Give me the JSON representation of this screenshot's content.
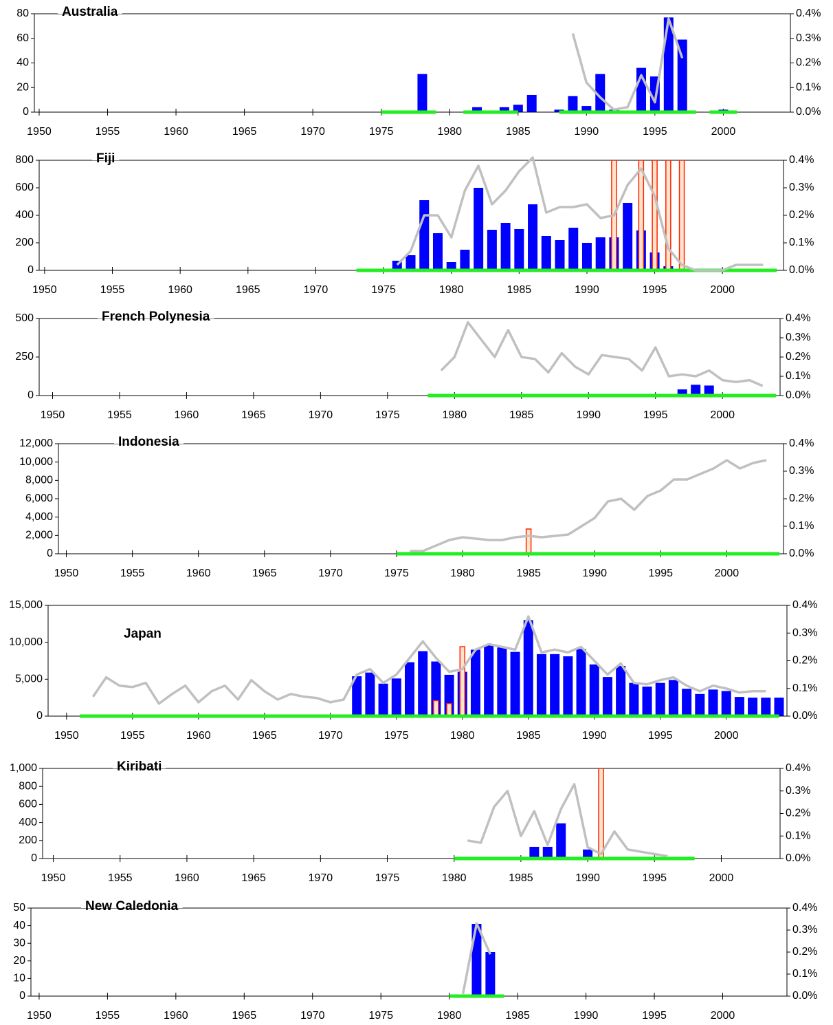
{
  "chart_data": [
    {
      "type": "combo",
      "title": "Australia",
      "xlim": [
        1949.65,
        2004.9
      ],
      "xticks": [
        1950,
        1955,
        1960,
        1965,
        1970,
        1975,
        1980,
        1985,
        1990,
        1995,
        2000
      ],
      "ylim": [
        0,
        80
      ],
      "yticks": [
        0,
        20,
        40,
        60,
        80
      ],
      "y2lim": [
        0,
        0.4
      ],
      "y2ticks": [
        {
          "value": 0,
          "label": "0.0%"
        },
        {
          "value": 0.1,
          "label": "0.1%"
        },
        {
          "value": 0.2,
          "label": "0.2%"
        },
        {
          "value": 0.3,
          "label": "0.3%"
        },
        {
          "value": 0.4,
          "label": "0.4%"
        }
      ],
      "series": [
        {
          "type": "bar",
          "color": "#0000ff",
          "x": [
            1978,
            1982,
            1984,
            1985,
            1986,
            1988,
            1989,
            1990,
            1991,
            1992,
            1994,
            1995,
            1996,
            1997,
            2000
          ],
          "values": [
            31,
            4,
            4,
            6,
            14,
            2,
            13,
            5,
            31,
            2,
            36,
            29,
            77,
            59,
            2
          ]
        },
        {
          "type": "line",
          "axis": "y2",
          "color": "#c0c0c0",
          "x": [
            1989,
            1990,
            1991,
            1992,
            1993,
            1994,
            1995,
            1996,
            1997
          ],
          "values": [
            0.32,
            0.12,
            0.06,
            0.01,
            0.02,
            0.15,
            0.04,
            0.38,
            0.22
          ]
        }
      ],
      "spans": {
        "color": "#22ee22",
        "start": [
          1975,
          1981,
          1988,
          1999
        ],
        "end": [
          1979,
          1985,
          1998,
          2001
        ]
      }
    },
    {
      "type": "combo",
      "title": "Fiji",
      "xlim": [
        1949.6,
        2004.5
      ],
      "xticks": [
        1950,
        1955,
        1960,
        1965,
        1970,
        1975,
        1980,
        1985,
        1990,
        1995,
        2000
      ],
      "ylim": [
        0,
        800
      ],
      "yticks": [
        0,
        200,
        400,
        600,
        800
      ],
      "y2lim": [
        0,
        0.4
      ],
      "y2ticks": [
        {
          "value": 0,
          "label": "0.0%"
        },
        {
          "value": 0.1,
          "label": "0.1%"
        },
        {
          "value": 0.2,
          "label": "0.2%"
        },
        {
          "value": 0.3,
          "label": "0.3%"
        },
        {
          "value": 0.4,
          "label": "0.4%"
        }
      ],
      "series": [
        {
          "type": "bar",
          "color": "#0000ff",
          "x": [
            1976,
            1977,
            1978,
            1979,
            1980,
            1981,
            1982,
            1983,
            1984,
            1985,
            1986,
            1987,
            1988,
            1989,
            1990,
            1991,
            1992,
            1993,
            1994,
            1995,
            1996
          ],
          "values": [
            70,
            110,
            510,
            270,
            60,
            150,
            600,
            295,
            345,
            300,
            480,
            250,
            220,
            310,
            200,
            240,
            240,
            490,
            290,
            130,
            30
          ]
        },
        {
          "type": "outline-bar",
          "color": "#ff2200",
          "x": [
            1992,
            1994,
            1995,
            1996,
            1997
          ],
          "values": [
            800,
            800,
            800,
            800,
            800
          ]
        },
        {
          "type": "line",
          "axis": "y2",
          "color": "#c0c0c0",
          "x": [
            1976,
            1977,
            1978,
            1979,
            1980,
            1981,
            1982,
            1983,
            1984,
            1985,
            1986,
            1987,
            1988,
            1989,
            1990,
            1991,
            1992,
            1993,
            1994,
            1995,
            1996,
            1997,
            1998,
            1999,
            2000,
            2001,
            2002,
            2003
          ],
          "values": [
            0.02,
            0.07,
            0.2,
            0.2,
            0.12,
            0.29,
            0.38,
            0.24,
            0.29,
            0.36,
            0.41,
            0.21,
            0.23,
            0.23,
            0.24,
            0.19,
            0.2,
            0.31,
            0.37,
            0.27,
            0.08,
            0.02,
            0,
            0,
            0,
            0.02,
            0.02,
            0.02
          ]
        }
      ],
      "spans": {
        "color": "#22ee22",
        "start": [
          1973
        ],
        "end": [
          2004
        ]
      }
    },
    {
      "type": "combo",
      "title": "French Polynesia",
      "xlim": [
        1949,
        2004.3
      ],
      "xticks": [
        1950,
        1955,
        1960,
        1965,
        1970,
        1975,
        1980,
        1985,
        1990,
        1995,
        2000
      ],
      "ylim": [
        0,
        500
      ],
      "yticks": [
        0,
        250,
        500
      ],
      "y2lim": [
        0,
        0.4
      ],
      "y2ticks": [
        {
          "value": 0,
          "label": "0.0%"
        },
        {
          "value": 0.1,
          "label": "0.1%"
        },
        {
          "value": 0.2,
          "label": "0.2%"
        },
        {
          "value": 0.3,
          "label": "0.3%"
        },
        {
          "value": 0.4,
          "label": "0.4%"
        }
      ],
      "series": [
        {
          "type": "bar",
          "color": "#0000ff",
          "x": [
            1997,
            1998,
            1999,
            2001
          ],
          "values": [
            40,
            70,
            65,
            10
          ]
        },
        {
          "type": "line",
          "axis": "y2",
          "color": "#c0c0c0",
          "x": [
            1979,
            1980,
            1981,
            1982,
            1983,
            1984,
            1985,
            1986,
            1987,
            1988,
            1989,
            1990,
            1991,
            1992,
            1993,
            1994,
            1995,
            1996,
            1997,
            1998,
            1999,
            2000,
            2001,
            2002,
            2003
          ],
          "values": [
            0.13,
            0.2,
            0.38,
            0.29,
            0.2,
            0.34,
            0.2,
            0.19,
            0.12,
            0.22,
            0.15,
            0.11,
            0.21,
            0.2,
            0.19,
            0.13,
            0.25,
            0.1,
            0.11,
            0.1,
            0.13,
            0.08,
            0.07,
            0.08,
            0.05
          ]
        }
      ],
      "spans": {
        "color": "#22ee22",
        "start": [
          1978
        ],
        "end": [
          2004
        ]
      }
    },
    {
      "type": "combo",
      "title": "Indonesia",
      "xlim": [
        1949.4,
        2004.3
      ],
      "xticks": [
        1950,
        1955,
        1960,
        1965,
        1970,
        1975,
        1980,
        1985,
        1990,
        1995,
        2000
      ],
      "ylim": [
        0,
        12000
      ],
      "yticks": [
        0,
        {
          "value": 2000,
          "label": "2,000"
        },
        {
          "value": 4000,
          "label": "4,000"
        },
        {
          "value": 6000,
          "label": "6,000"
        },
        {
          "value": 8000,
          "label": "8,000"
        },
        {
          "value": 10000,
          "label": "10,000"
        },
        {
          "value": 12000,
          "label": "12,000"
        }
      ],
      "y2lim": [
        0,
        0.4
      ],
      "y2ticks": [
        {
          "value": 0,
          "label": "0.0%"
        },
        {
          "value": 0.1,
          "label": "0.1%"
        },
        {
          "value": 0.2,
          "label": "0.2%"
        },
        {
          "value": 0.3,
          "label": "0.3%"
        },
        {
          "value": 0.4,
          "label": "0.4%"
        }
      ],
      "series": [
        {
          "type": "outline-bar",
          "color": "#ff2200",
          "x": [
            1985
          ],
          "values": [
            2700
          ]
        },
        {
          "type": "line",
          "axis": "y2",
          "color": "#c0c0c0",
          "x": [
            1976,
            1977,
            1978,
            1979,
            1980,
            1981,
            1982,
            1983,
            1984,
            1985,
            1986,
            1987,
            1988,
            1989,
            1990,
            1991,
            1992,
            1993,
            1994,
            1995,
            1996,
            1997,
            1998,
            1999,
            2000,
            2001,
            2002,
            2003
          ],
          "values": [
            0.01,
            0.01,
            0.03,
            0.05,
            0.06,
            0.055,
            0.05,
            0.05,
            0.06,
            0.065,
            0.06,
            0.065,
            0.07,
            0.1,
            0.13,
            0.19,
            0.2,
            0.16,
            0.21,
            0.23,
            0.27,
            0.27,
            0.29,
            0.31,
            0.34,
            0.31,
            0.33,
            0.34
          ]
        }
      ],
      "spans": {
        "color": "#22ee22",
        "start": [
          1975
        ],
        "end": [
          2004
        ]
      }
    },
    {
      "type": "combo",
      "title": "Japan",
      "xlim": [
        1948.6,
        2004.6
      ],
      "xticks": [
        1950,
        1955,
        1960,
        1965,
        1970,
        1975,
        1980,
        1985,
        1990,
        1995,
        2000
      ],
      "ylim": [
        0,
        15000
      ],
      "yticks": [
        0,
        {
          "value": 5000,
          "label": "5,000"
        },
        {
          "value": 10000,
          "label": "10,000"
        },
        {
          "value": 15000,
          "label": "15,000"
        }
      ],
      "y2lim": [
        0,
        0.4
      ],
      "y2ticks": [
        {
          "value": 0,
          "label": "0.0%"
        },
        {
          "value": 0.1,
          "label": "0.1%"
        },
        {
          "value": 0.2,
          "label": "0.2%"
        },
        {
          "value": 0.3,
          "label": "0.3%"
        },
        {
          "value": 0.4,
          "label": "0.4%"
        }
      ],
      "series": [
        {
          "type": "bar",
          "color": "#0000ff",
          "x": [
            1972,
            1973,
            1974,
            1975,
            1976,
            1977,
            1978,
            1979,
            1980,
            1981,
            1982,
            1983,
            1984,
            1985,
            1986,
            1987,
            1988,
            1989,
            1990,
            1991,
            1992,
            1993,
            1994,
            1995,
            1996,
            1997,
            1998,
            1999,
            2000,
            2001,
            2002,
            2003,
            2004
          ],
          "values": [
            5400,
            5900,
            4400,
            5100,
            7300,
            8800,
            7400,
            5600,
            6000,
            9000,
            9600,
            9300,
            8700,
            13000,
            8400,
            8400,
            8100,
            9100,
            7000,
            5300,
            6800,
            4500,
            4000,
            4500,
            4900,
            3700,
            3000,
            3600,
            3400,
            2600,
            2500,
            2500,
            2500
          ]
        },
        {
          "type": "outline-bar",
          "color": "#ff2200",
          "x": [
            1978,
            1979,
            1980
          ],
          "values": [
            2100,
            1700,
            9400
          ]
        },
        {
          "type": "line",
          "axis": "y2",
          "color": "#c0c0c0",
          "x": [
            1952,
            1953,
            1954,
            1955,
            1956,
            1957,
            1958,
            1959,
            1960,
            1961,
            1962,
            1963,
            1964,
            1965,
            1966,
            1967,
            1968,
            1969,
            1970,
            1971,
            1972,
            1973,
            1974,
            1975,
            1976,
            1977,
            1978,
            1979,
            1980,
            1981,
            1982,
            1983,
            1984,
            1985,
            1986,
            1987,
            1988,
            1989,
            1990,
            1991,
            1992,
            1993,
            1994,
            1995,
            1996,
            1997,
            1998,
            1999,
            2000,
            2001,
            2002,
            2003
          ],
          "values": [
            0.07,
            0.14,
            0.11,
            0.105,
            0.12,
            0.045,
            0.08,
            0.11,
            0.05,
            0.09,
            0.11,
            0.06,
            0.13,
            0.09,
            0.06,
            0.08,
            0.07,
            0.065,
            0.05,
            0.06,
            0.15,
            0.17,
            0.12,
            0.15,
            0.21,
            0.27,
            0.21,
            0.16,
            0.17,
            0.24,
            0.26,
            0.25,
            0.24,
            0.36,
            0.23,
            0.24,
            0.23,
            0.25,
            0.2,
            0.15,
            0.19,
            0.12,
            0.115,
            0.13,
            0.14,
            0.11,
            0.09,
            0.11,
            0.1,
            0.085,
            0.09,
            0.09
          ]
        }
      ],
      "spans": {
        "color": "#22ee22",
        "start": [
          1951
        ],
        "end": [
          2004
        ]
      }
    },
    {
      "type": "combo",
      "title": "Kiribati",
      "xlim": [
        1949.2,
        2004.4
      ],
      "xticks": [
        1950,
        1955,
        1960,
        1965,
        1970,
        1975,
        1980,
        1985,
        1990,
        1995,
        2000
      ],
      "ylim": [
        0,
        1000
      ],
      "yticks": [
        0,
        200,
        400,
        600,
        800,
        {
          "value": 1000,
          "label": "1,000"
        }
      ],
      "y2lim": [
        0,
        0.4
      ],
      "y2ticks": [
        {
          "value": 0,
          "label": "0.0%"
        },
        {
          "value": 0.1,
          "label": "0.1%"
        },
        {
          "value": 0.2,
          "label": "0.2%"
        },
        {
          "value": 0.3,
          "label": "0.3%"
        },
        {
          "value": 0.4,
          "label": "0.4%"
        }
      ],
      "series": [
        {
          "type": "bar",
          "color": "#0000ff",
          "x": [
            1986,
            1987,
            1988,
            1990
          ],
          "values": [
            130,
            130,
            390,
            100
          ]
        },
        {
          "type": "outline-bar",
          "color": "#ff2200",
          "x": [
            1991
          ],
          "values": [
            1000
          ]
        },
        {
          "type": "line",
          "axis": "y2",
          "color": "#c0c0c0",
          "x": [
            1981,
            1982,
            1983,
            1984,
            1985,
            1986,
            1987,
            1988,
            1989,
            1990,
            1991,
            1992,
            1993,
            1994,
            1995,
            1996
          ],
          "values": [
            0.08,
            0.07,
            0.23,
            0.3,
            0.1,
            0.21,
            0.06,
            0.22,
            0.33,
            0.05,
            0.02,
            0.12,
            0.04,
            0.03,
            0.02,
            0.01
          ]
        }
      ],
      "spans": {
        "color": "#22ee22",
        "start": [
          1980
        ],
        "end": [
          1998
        ]
      }
    },
    {
      "type": "combo",
      "title": "New Caledonia",
      "xlim": [
        1949.4,
        2004.7
      ],
      "xticks": [
        1950,
        1955,
        1960,
        1965,
        1970,
        1975,
        1980,
        1985,
        1990,
        1995,
        2000
      ],
      "ylim": [
        0,
        50
      ],
      "yticks": [
        0,
        10,
        20,
        30,
        40,
        50
      ],
      "y2lim": [
        0,
        0.4
      ],
      "y2ticks": [
        {
          "value": 0,
          "label": "0.0%"
        },
        {
          "value": 0.1,
          "label": "0.1%"
        },
        {
          "value": 0.2,
          "label": "0.2%"
        },
        {
          "value": 0.3,
          "label": "0.3%"
        },
        {
          "value": 0.4,
          "label": "0.4%"
        }
      ],
      "series": [
        {
          "type": "bar",
          "color": "#0000ff",
          "x": [
            1982,
            1983
          ],
          "values": [
            41,
            25
          ]
        },
        {
          "type": "line",
          "axis": "y2",
          "color": "#c0c0c0",
          "x": [
            1981,
            1982,
            1983
          ],
          "values": [
            0.01,
            0.33,
            0.19
          ]
        }
      ],
      "spans": {
        "color": "#22ee22",
        "start": [
          1980
        ],
        "end": [
          1984
        ]
      }
    }
  ]
}
